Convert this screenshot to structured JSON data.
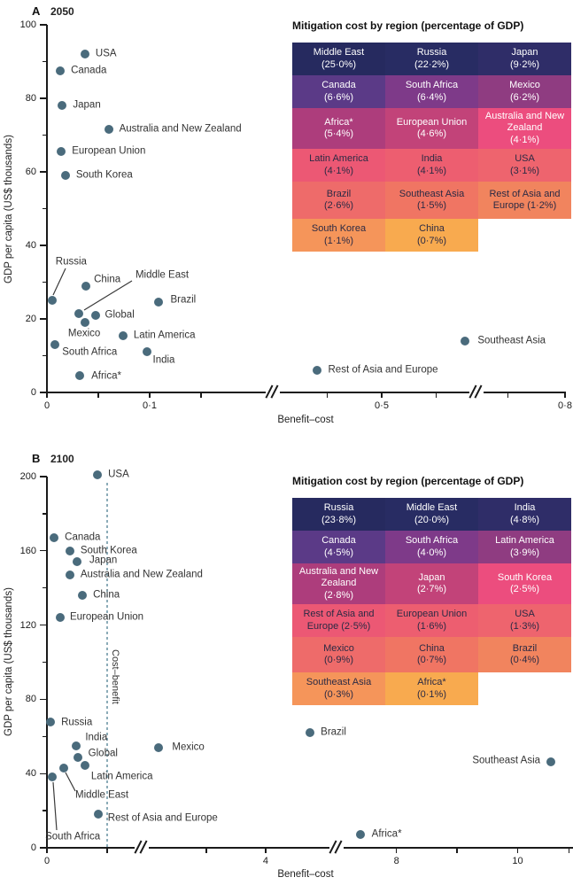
{
  "colors": {
    "dot": "#4a6b7c",
    "point_label": "#333333",
    "axis": "#1a1a1a",
    "reference_line": "#4e7f93",
    "leader_line": "#3a3a3a",
    "table_palette": [
      "#262a5f",
      "#282c63",
      "#2f2d68",
      "#5b3a87",
      "#7e3a89",
      "#8f3c81",
      "#ad3d7c",
      "#c24379",
      "#ec4d7e",
      "#ec5874",
      "#ed5e70",
      "#ee646e",
      "#ee6b6a",
      "#f07563",
      "#f1845e",
      "#f5955a",
      "#f8aa4f"
    ],
    "table_text_light": "#ffffff",
    "table_text_dark": "#2b2a44"
  },
  "chart_data": [
    {
      "panel": "A",
      "year": "2050",
      "type": "scatter",
      "xlabel": "Benefit–cost",
      "ylabel": "GDP per capita (US$ thousands)",
      "ylim": [
        0,
        100
      ],
      "y_tick_labels": [
        0,
        20,
        40,
        60,
        80,
        100
      ],
      "x_tick_labels": [
        "0",
        "0·1",
        "0·5",
        "0·8"
      ],
      "x_axis_breaks": 2,
      "points": [
        {
          "label": "USA",
          "x": 0.037,
          "y": 92
        },
        {
          "label": "Canada",
          "x": 0.013,
          "y": 87.5
        },
        {
          "label": "Japan",
          "x": 0.015,
          "y": 78
        },
        {
          "label": "Australia and New Zealand",
          "x": 0.06,
          "y": 71.5
        },
        {
          "label": "European Union",
          "x": 0.014,
          "y": 65.5
        },
        {
          "label": "South Korea",
          "x": 0.018,
          "y": 59
        },
        {
          "label": "Russia",
          "x": 0.005,
          "y": 25
        },
        {
          "label": "China",
          "x": 0.038,
          "y": 29
        },
        {
          "label": "Middle East",
          "x": 0.031,
          "y": 21.5
        },
        {
          "label": "Global",
          "x": 0.047,
          "y": 21
        },
        {
          "label": "Mexico",
          "x": 0.037,
          "y": 19
        },
        {
          "label": "Brazil",
          "x": 0.109,
          "y": 24.5
        },
        {
          "label": "Latin America",
          "x": 0.074,
          "y": 15.5
        },
        {
          "label": "South Africa",
          "x": 0.008,
          "y": 13
        },
        {
          "label": "India",
          "x": 0.097,
          "y": 11
        },
        {
          "label": "Africa*",
          "x": 0.032,
          "y": 4.5
        },
        {
          "label": "Southeast Asia",
          "x": 0.577,
          "y": 14
        },
        {
          "label": "Rest of Asia and Europe",
          "x": 0.44,
          "y": 6
        }
      ],
      "mitigation_table": {
        "title": "Mitigation cost by region (percentage of GDP)",
        "rows": [
          [
            {
              "region": "Middle East",
              "cost": "(25·0%)"
            },
            {
              "region": "Russia",
              "cost": "(22·2%)"
            },
            {
              "region": "Japan",
              "cost": "(9·2%)"
            }
          ],
          [
            {
              "region": "Canada",
              "cost": "(6·6%)"
            },
            {
              "region": "South Africa",
              "cost": "(6·4%)"
            },
            {
              "region": "Mexico",
              "cost": "(6·2%)"
            }
          ],
          [
            {
              "region": "Africa*",
              "cost": "(5·4%)"
            },
            {
              "region": "European Union",
              "cost": "(4·6%)"
            },
            {
              "region": "Australia and New Zealand",
              "cost": "(4·1%)"
            }
          ],
          [
            {
              "region": "Latin America",
              "cost": "(4·1%)"
            },
            {
              "region": "India",
              "cost": "(4·1%)"
            },
            {
              "region": "USA",
              "cost": "(3·1%)"
            }
          ],
          [
            {
              "region": "Brazil",
              "cost": "(2·6%)"
            },
            {
              "region": "Southeast Asia",
              "cost": "(1·5%)"
            },
            {
              "region": "Rest of Asia and Europe",
              "cost": "(1·2%)"
            }
          ],
          [
            {
              "region": "South Korea",
              "cost": "(1·1%)"
            },
            {
              "region": "China",
              "cost": "(0·7%)"
            }
          ]
        ]
      }
    },
    {
      "panel": "B",
      "year": "2100",
      "type": "scatter",
      "xlabel": "Benefit–cost",
      "ylabel": "GDP per capita (US$ thousands)",
      "ylim": [
        0,
        200
      ],
      "y_tick_labels": [
        0,
        40,
        80,
        120,
        160,
        200
      ],
      "x_tick_labels": [
        "0",
        "4",
        "8",
        "10"
      ],
      "x_axis_breaks": 2,
      "reference_line": {
        "x": 1,
        "label": "Cost–benefit"
      },
      "points": [
        {
          "label": "USA",
          "x": 0.84,
          "y": 201
        },
        {
          "label": "Canada",
          "x": 0.12,
          "y": 167
        },
        {
          "label": "South Korea",
          "x": 0.38,
          "y": 160
        },
        {
          "label": "Japan",
          "x": 0.5,
          "y": 154
        },
        {
          "label": "Australia and New Zealand",
          "x": 0.38,
          "y": 147
        },
        {
          "label": "China",
          "x": 0.59,
          "y": 136
        },
        {
          "label": "European Union",
          "x": 0.22,
          "y": 124
        },
        {
          "label": "Russia",
          "x": 0.06,
          "y": 68
        },
        {
          "label": "India",
          "x": 0.49,
          "y": 55
        },
        {
          "label": "Global",
          "x": 0.51,
          "y": 48.5
        },
        {
          "label": "Latin America",
          "x": 0.63,
          "y": 44.5
        },
        {
          "label": "Middle East",
          "x": 0.28,
          "y": 43
        },
        {
          "label": "South Africa",
          "x": 0.09,
          "y": 38
        },
        {
          "label": "Rest of Asia and Europe",
          "x": 0.85,
          "y": 18
        },
        {
          "label": "Mexico",
          "x": 2.2,
          "y": 54
        },
        {
          "label": "Brazil",
          "x": 4.75,
          "y": 62
        },
        {
          "label": "Southeast Asia",
          "x": 10.55,
          "y": 46.5
        },
        {
          "label": "Africa*",
          "x": 7.4,
          "y": 7
        }
      ],
      "mitigation_table": {
        "title": "Mitigation cost by region (percentage of GDP)",
        "rows": [
          [
            {
              "region": "Russia",
              "cost": "(23·8%)"
            },
            {
              "region": "Middle East",
              "cost": "(20·0%)"
            },
            {
              "region": "India",
              "cost": "(4·8%)"
            }
          ],
          [
            {
              "region": "Canada",
              "cost": "(4·5%)"
            },
            {
              "region": "South Africa",
              "cost": "(4·0%)"
            },
            {
              "region": "Latin America",
              "cost": "(3·9%)"
            }
          ],
          [
            {
              "region": "Australia and New Zealand",
              "cost": "(2·8%)"
            },
            {
              "region": "Japan",
              "cost": "(2·7%)"
            },
            {
              "region": "South Korea",
              "cost": "(2·5%)"
            }
          ],
          [
            {
              "region": "Rest of Asia and Europe",
              "cost": "(2·5%)"
            },
            {
              "region": "European Union",
              "cost": "(1·6%)"
            },
            {
              "region": "USA",
              "cost": "(1·3%)"
            }
          ],
          [
            {
              "region": "Mexico",
              "cost": "(0·9%)"
            },
            {
              "region": "China",
              "cost": "(0·7%)"
            },
            {
              "region": "Brazil",
              "cost": "(0·4%)"
            }
          ],
          [
            {
              "region": "Southeast Asia",
              "cost": "(0·3%)"
            },
            {
              "region": "Africa*",
              "cost": "(0·1%)"
            }
          ]
        ]
      }
    }
  ]
}
